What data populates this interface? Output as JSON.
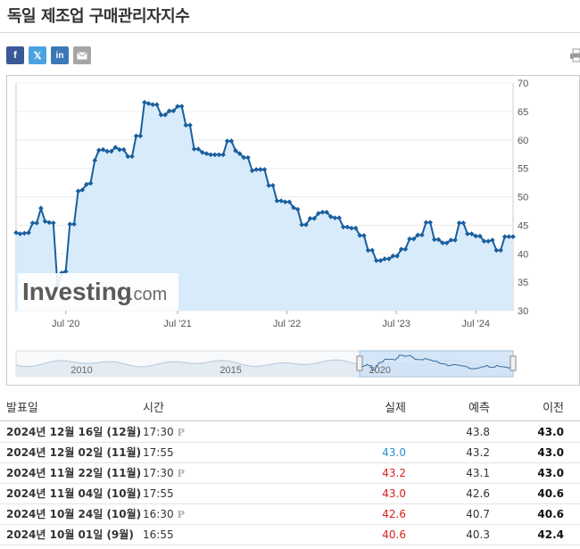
{
  "page": {
    "title": "독일 제조업 구매관리자지수"
  },
  "share": {
    "facebook": "f",
    "x": "𝕏",
    "linkedin": "in",
    "icons": [
      "facebook-icon",
      "x-icon",
      "linkedin-icon",
      "mail-icon",
      "print-icon"
    ]
  },
  "brand": {
    "watermark_text": "Investing",
    "watermark_suffix": ".com"
  },
  "colors": {
    "line": "#1a5f9e",
    "area": "#d8ebfb",
    "positive": "#2690d1",
    "negative": "#d91f1f"
  },
  "chart_data": [
    {
      "type": "area",
      "title": "",
      "xlabel": "",
      "ylabel": "",
      "ylim": [
        30,
        70
      ],
      "y_ticks": [
        30,
        35,
        40,
        45,
        50,
        55,
        60,
        65,
        70
      ],
      "x_tick_labels": [
        "Jul '20",
        "Jul '21",
        "Jul '22",
        "Jul '23",
        "Jul '24"
      ],
      "grid": true,
      "y_axis_side": "right",
      "series": [
        {
          "values": [
            43.7,
            43.5,
            43.6,
            43.7,
            45.4,
            45.4,
            48.0,
            45.7,
            45.5,
            45.4,
            34.5,
            36.6,
            36.9,
            45.2,
            45.2,
            51.0,
            51.2,
            52.2,
            52.4,
            56.4,
            58.2,
            58.3,
            58.0,
            58.0,
            58.7,
            58.3,
            58.3,
            57.1,
            57.1,
            60.7,
            60.7,
            66.6,
            66.4,
            66.2,
            66.2,
            64.4,
            64.4,
            65.1,
            65.1,
            65.9,
            65.9,
            62.6,
            62.6,
            58.4,
            58.4,
            57.8,
            57.6,
            57.4,
            57.4,
            57.4,
            57.4,
            59.8,
            59.8,
            58.1,
            57.6,
            56.9,
            56.9,
            54.6,
            54.8,
            54.8,
            54.8,
            52.0,
            52.0,
            49.3,
            49.3,
            49.1,
            49.1,
            48.1,
            47.8,
            45.1,
            45.1,
            46.2,
            46.2,
            47.1,
            47.3,
            47.3,
            46.5,
            46.3,
            46.3,
            44.7,
            44.7,
            44.5,
            44.5,
            43.2,
            43.2,
            40.6,
            40.6,
            38.8,
            38.8,
            39.1,
            39.1,
            39.6,
            39.6,
            40.8,
            40.8,
            42.6,
            42.6,
            43.3,
            43.3,
            45.5,
            45.5,
            42.5,
            42.5,
            41.9,
            41.9,
            42.4,
            42.4,
            45.4,
            45.4,
            43.5,
            43.5,
            43.1,
            43.1,
            42.2,
            42.2,
            42.4,
            40.6,
            40.6,
            43.0,
            43.0,
            43.0
          ]
        }
      ]
    },
    {
      "type": "area",
      "title": "",
      "xlabel": "",
      "ylabel": "",
      "x_tick_labels": [
        "2010",
        "2015",
        "2020"
      ],
      "grid": false
    }
  ],
  "table": {
    "headers": {
      "date": "발표일",
      "time": "시간",
      "actual": "실제",
      "forecast": "예측",
      "previous": "이전"
    },
    "rows": [
      {
        "date": "2024년 12월 16일 (12월)",
        "time": "17:30",
        "prelim": "P",
        "actual": "",
        "actual_state": "",
        "forecast": "43.8",
        "previous": "43.0"
      },
      {
        "date": "2024년 12월 02일 (11월)",
        "time": "17:55",
        "prelim": "",
        "actual": "43.0",
        "actual_state": "pos",
        "forecast": "43.2",
        "previous": "43.0"
      },
      {
        "date": "2024년 11월 22일 (11월)",
        "time": "17:30",
        "prelim": "P",
        "actual": "43.2",
        "actual_state": "neg",
        "forecast": "43.1",
        "previous": "43.0"
      },
      {
        "date": "2024년 11월 04일 (10월)",
        "time": "17:55",
        "prelim": "",
        "actual": "43.0",
        "actual_state": "neg",
        "forecast": "42.6",
        "previous": "40.6"
      },
      {
        "date": "2024년 10월 24일 (10월)",
        "time": "16:30",
        "prelim": "P",
        "actual": "42.6",
        "actual_state": "neg",
        "forecast": "40.7",
        "previous": "40.6"
      },
      {
        "date": "2024년 10월 01일 (9월)",
        "time": "16:55",
        "prelim": "",
        "actual": "40.6",
        "actual_state": "neg",
        "forecast": "40.3",
        "previous": "42.4"
      }
    ]
  }
}
